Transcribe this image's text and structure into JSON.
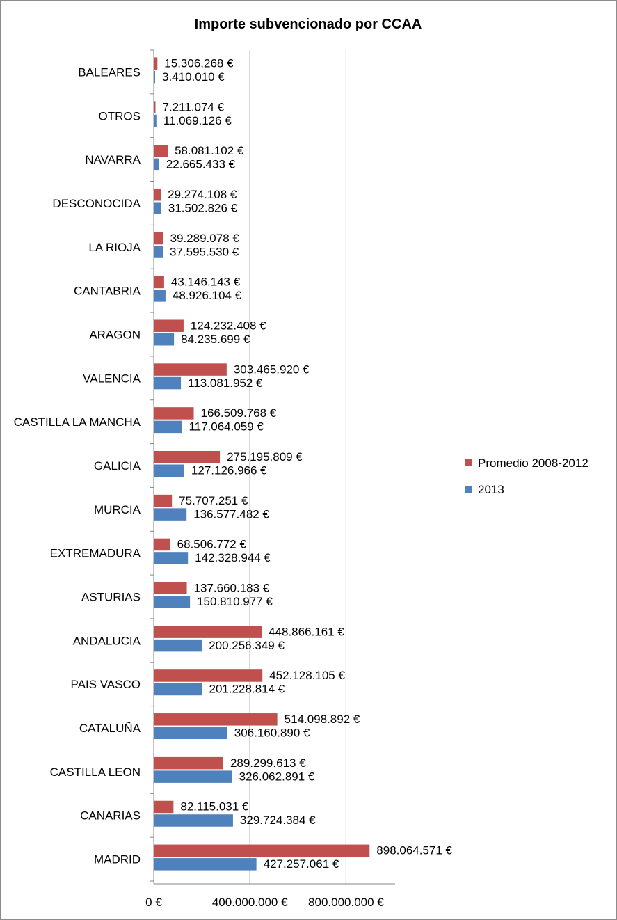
{
  "chart_data": {
    "type": "bar",
    "orientation": "horizontal",
    "title": "Importe subvencionado  por CCAA",
    "xlabel": "",
    "ylabel": "",
    "xlim": [
      0,
      1200000000
    ],
    "x_ticks": [
      0,
      400000000,
      800000000
    ],
    "x_tick_labels": [
      "0 €",
      "400.000.000 €",
      "800.000.000 €"
    ],
    "grid": "vertical major gridlines",
    "legend_position": "right",
    "categories": [
      "BALEARES",
      "OTROS",
      "NAVARRA",
      "DESCONOCIDA",
      "LA RIOJA",
      "CANTABRIA",
      "ARAGON",
      "VALENCIA",
      "CASTILLA LA MANCHA",
      "GALICIA",
      "MURCIA",
      "EXTREMADURA",
      "ASTURIAS",
      "ANDALUCIA",
      "PAIS VASCO",
      "CATALUÑA",
      "CASTILLA LEON",
      "CANARIAS",
      "MADRID"
    ],
    "series": [
      {
        "name": "Promedio 2008-2012",
        "color": "#c0504d",
        "values": [
          15306268,
          7211074,
          58081102,
          29274108,
          39289078,
          43146143,
          124232408,
          303465920,
          166509768,
          275195809,
          75707251,
          68506772,
          137660183,
          448866161,
          452128105,
          514098892,
          289299613,
          82115031,
          898064571
        ],
        "labels": [
          "15.306.268 €",
          "7.211.074 €",
          "58.081.102 €",
          "29.274.108 €",
          "39.289.078 €",
          "43.146.143 €",
          "124.232.408 €",
          "303.465.920 €",
          "166.509.768 €",
          "275.195.809 €",
          "75.707.251 €",
          "68.506.772 €",
          "137.660.183 €",
          "448.866.161 €",
          "452.128.105 €",
          "514.098.892 €",
          "289.299.613 €",
          "82.115.031 €",
          "898.064.571 €"
        ]
      },
      {
        "name": "2013",
        "color": "#4f81bd",
        "values": [
          3410010,
          11069126,
          22665433,
          31502826,
          37595530,
          48926104,
          84235699,
          113081952,
          117064059,
          127126966,
          136577482,
          142328944,
          150810977,
          200256349,
          201228814,
          306160890,
          326062891,
          329724384,
          427257061
        ],
        "labels": [
          "3.410.010 €",
          "11.069.126 €",
          "22.665.433 €",
          "31.502.826 €",
          "37.595.530 €",
          "48.926.104 €",
          "84.235.699 €",
          "113.081.952 €",
          "117.064.059 €",
          "127.126.966 €",
          "136.577.482 €",
          "142.328.944 €",
          "150.810.977 €",
          "200.256.349 €",
          "201.228.814 €",
          "306.160.890 €",
          "326.062.891 €",
          "329.724.384 €",
          "427.257.061 €"
        ]
      }
    ]
  }
}
